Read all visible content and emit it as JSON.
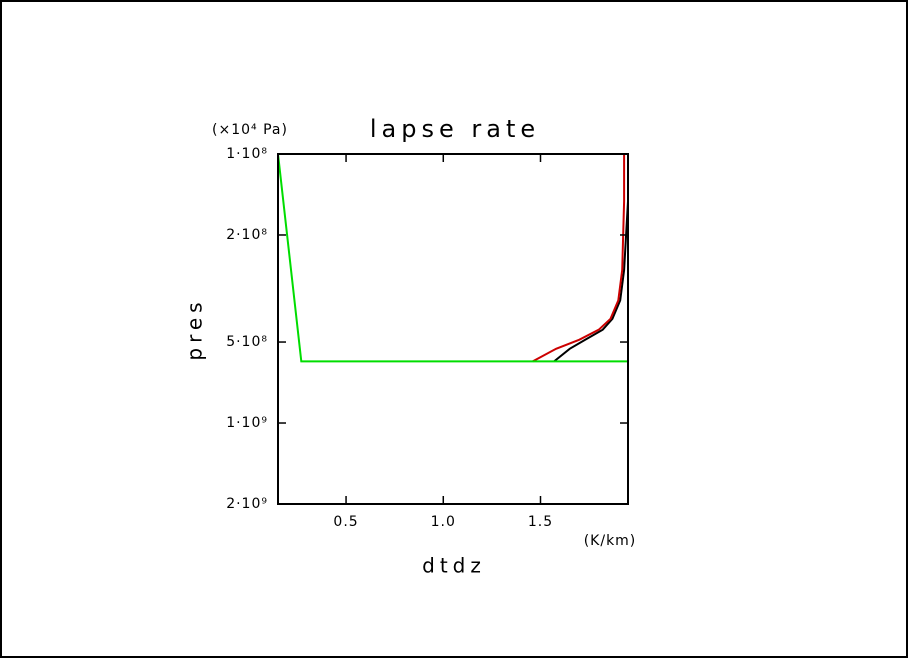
{
  "chart_data": {
    "type": "line",
    "title": "lapse rate",
    "xlabel": "dtdz",
    "xunits": "(K/km)",
    "ylabel": "pres",
    "yunits": "(×10⁴ Pa)",
    "xlim": [
      0.15,
      1.95
    ],
    "xticks": [
      0.5,
      {
        "value": 1,
        "label": "1.0"
      },
      1.5
    ],
    "ylim": [
      100000000,
      2000000000
    ],
    "yscale": "log",
    "yticks": [
      {
        "value": 100000000,
        "label": "1·10⁸"
      },
      {
        "value": 200000000,
        "label": "2·10⁸"
      },
      {
        "value": 500000000,
        "label": "5·10⁸"
      },
      {
        "value": 1000000000,
        "label": "1·10⁹"
      },
      {
        "value": 2000000000,
        "label": "2·10⁹"
      }
    ],
    "series": [
      {
        "color": "#000000",
        "x": [
          1.95,
          1.95,
          1.93,
          1.91,
          1.87,
          1.82,
          1.73,
          1.65,
          1.57
        ],
        "y": [
          100000000,
          150000000,
          270000000,
          350000000,
          410000000,
          450000000,
          490000000,
          530000000,
          590000000
        ]
      },
      {
        "color": "#cc0000",
        "x": [
          1.93,
          1.93,
          1.92,
          1.9,
          1.86,
          1.8,
          1.7,
          1.58,
          1.46
        ],
        "y": [
          100000000,
          150000000,
          270000000,
          350000000,
          410000000,
          450000000,
          490000000,
          530000000,
          590000000
        ]
      },
      {
        "color": "#00dd00",
        "x": [
          0.15,
          0.27,
          1.95,
          1.95
        ],
        "y": [
          100000000,
          590000000,
          590000000,
          2000000000
        ]
      }
    ]
  }
}
